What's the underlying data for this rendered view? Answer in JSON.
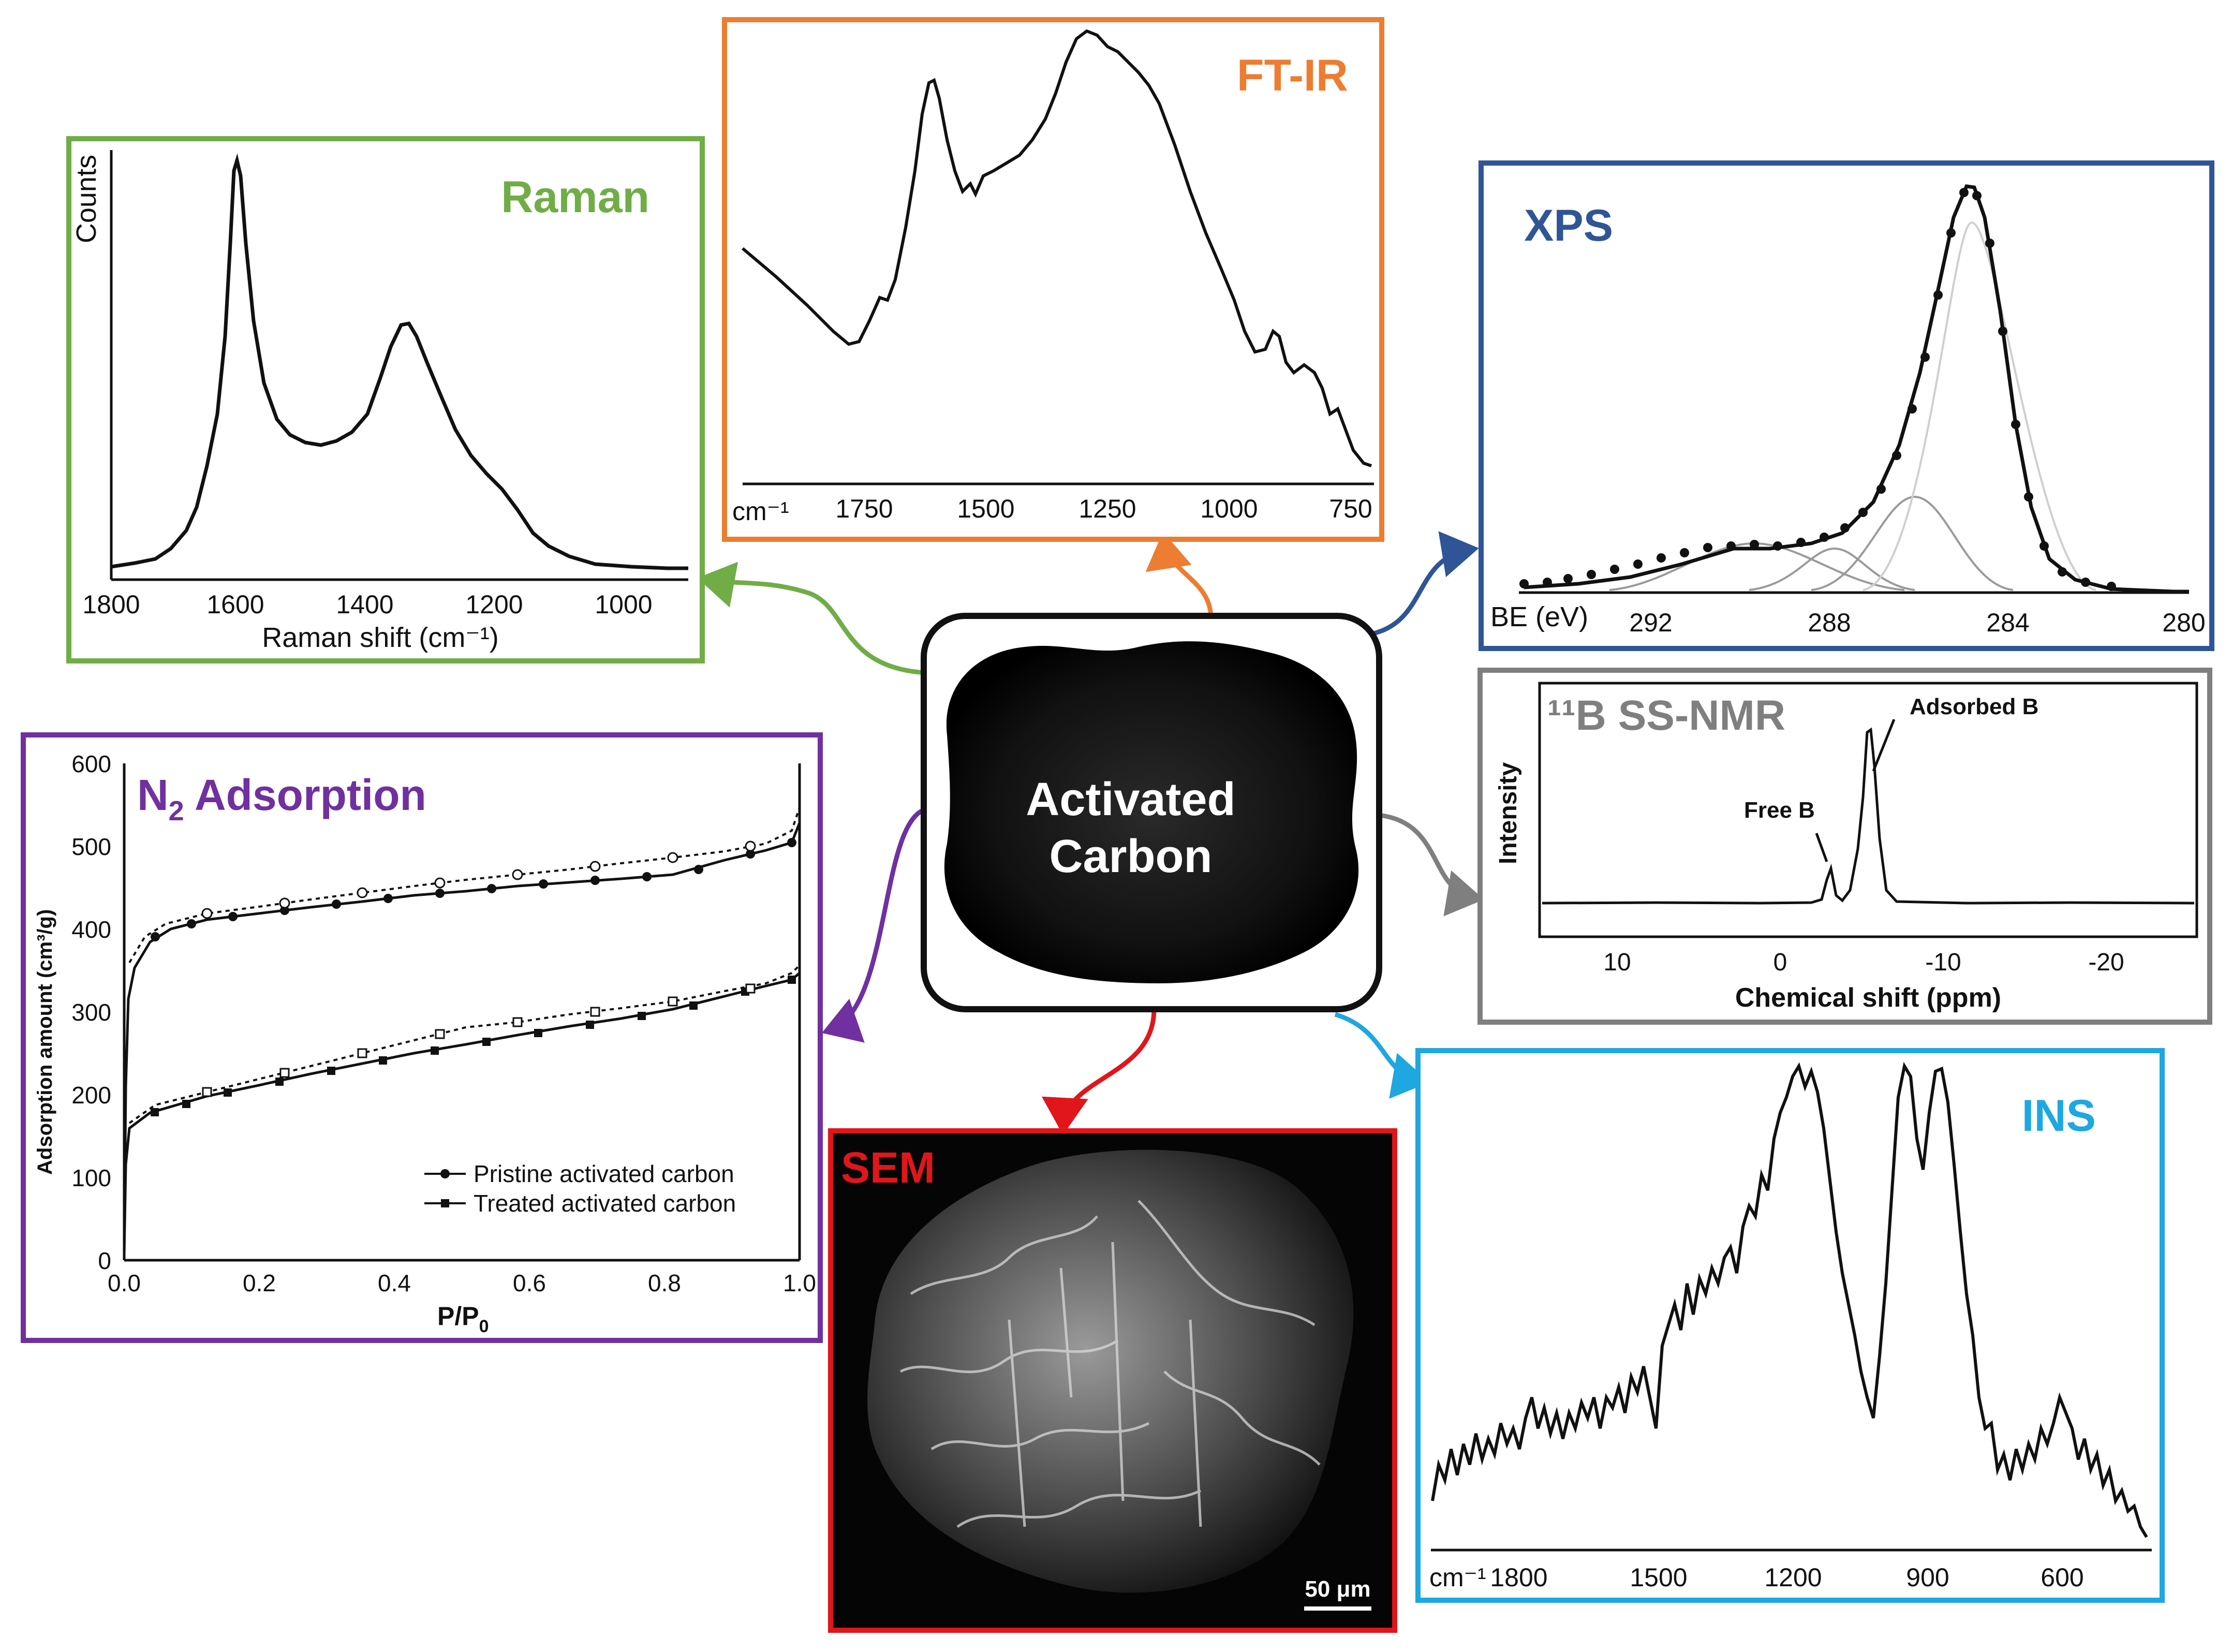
{
  "center": {
    "title_line1": "Activated",
    "title_line2": "Carbon",
    "border_color": "#111111"
  },
  "raman": {
    "title": "Raman",
    "color": "#70ad47",
    "ylabel": "Counts",
    "xlabel": "Raman shift (cm⁻¹)",
    "ticks": [
      "1800",
      "1600",
      "1400",
      "1200",
      "1000"
    ]
  },
  "ftir": {
    "title": "FT-IR",
    "color": "#ed7d31",
    "unit": "cm⁻¹",
    "ticks": [
      "1750",
      "1500",
      "1250",
      "1000",
      "750"
    ]
  },
  "xps": {
    "title": "XPS",
    "color": "#2f5597",
    "unit": "BE (eV)",
    "ticks": [
      "292",
      "288",
      "284",
      "280"
    ]
  },
  "nmr": {
    "title": "¹¹B SS-NMR",
    "color": "#7f7f7f",
    "ylabel": "Intensity",
    "xlabel": "Chemical shift (ppm)",
    "ticks": [
      "10",
      "0",
      "-10",
      "-20"
    ],
    "peak1": "Free B",
    "peak2": "Adsorbed B"
  },
  "n2": {
    "title_main": "N",
    "title_sub": "2",
    "title_rest": " Adsorption",
    "color": "#7030a0",
    "ylabel": "Adsorption amount (cm³/g)",
    "xlabel_main": "P/P",
    "xlabel_sub": "0",
    "yticks": [
      "600",
      "500",
      "400",
      "300",
      "200",
      "100",
      "0"
    ],
    "xticks": [
      "0.0",
      "0.2",
      "0.4",
      "0.6",
      "0.8",
      "1.0"
    ],
    "legend1": "Pristine activated carbon",
    "legend2": "Treated activated carbon"
  },
  "sem": {
    "title": "SEM",
    "color": "#e0161b",
    "scale": "50 μm"
  },
  "ins": {
    "title": "INS",
    "color": "#1ea7e1",
    "unit": "cm⁻¹",
    "ticks": [
      "1800",
      "1500",
      "1200",
      "900",
      "600"
    ]
  }
}
